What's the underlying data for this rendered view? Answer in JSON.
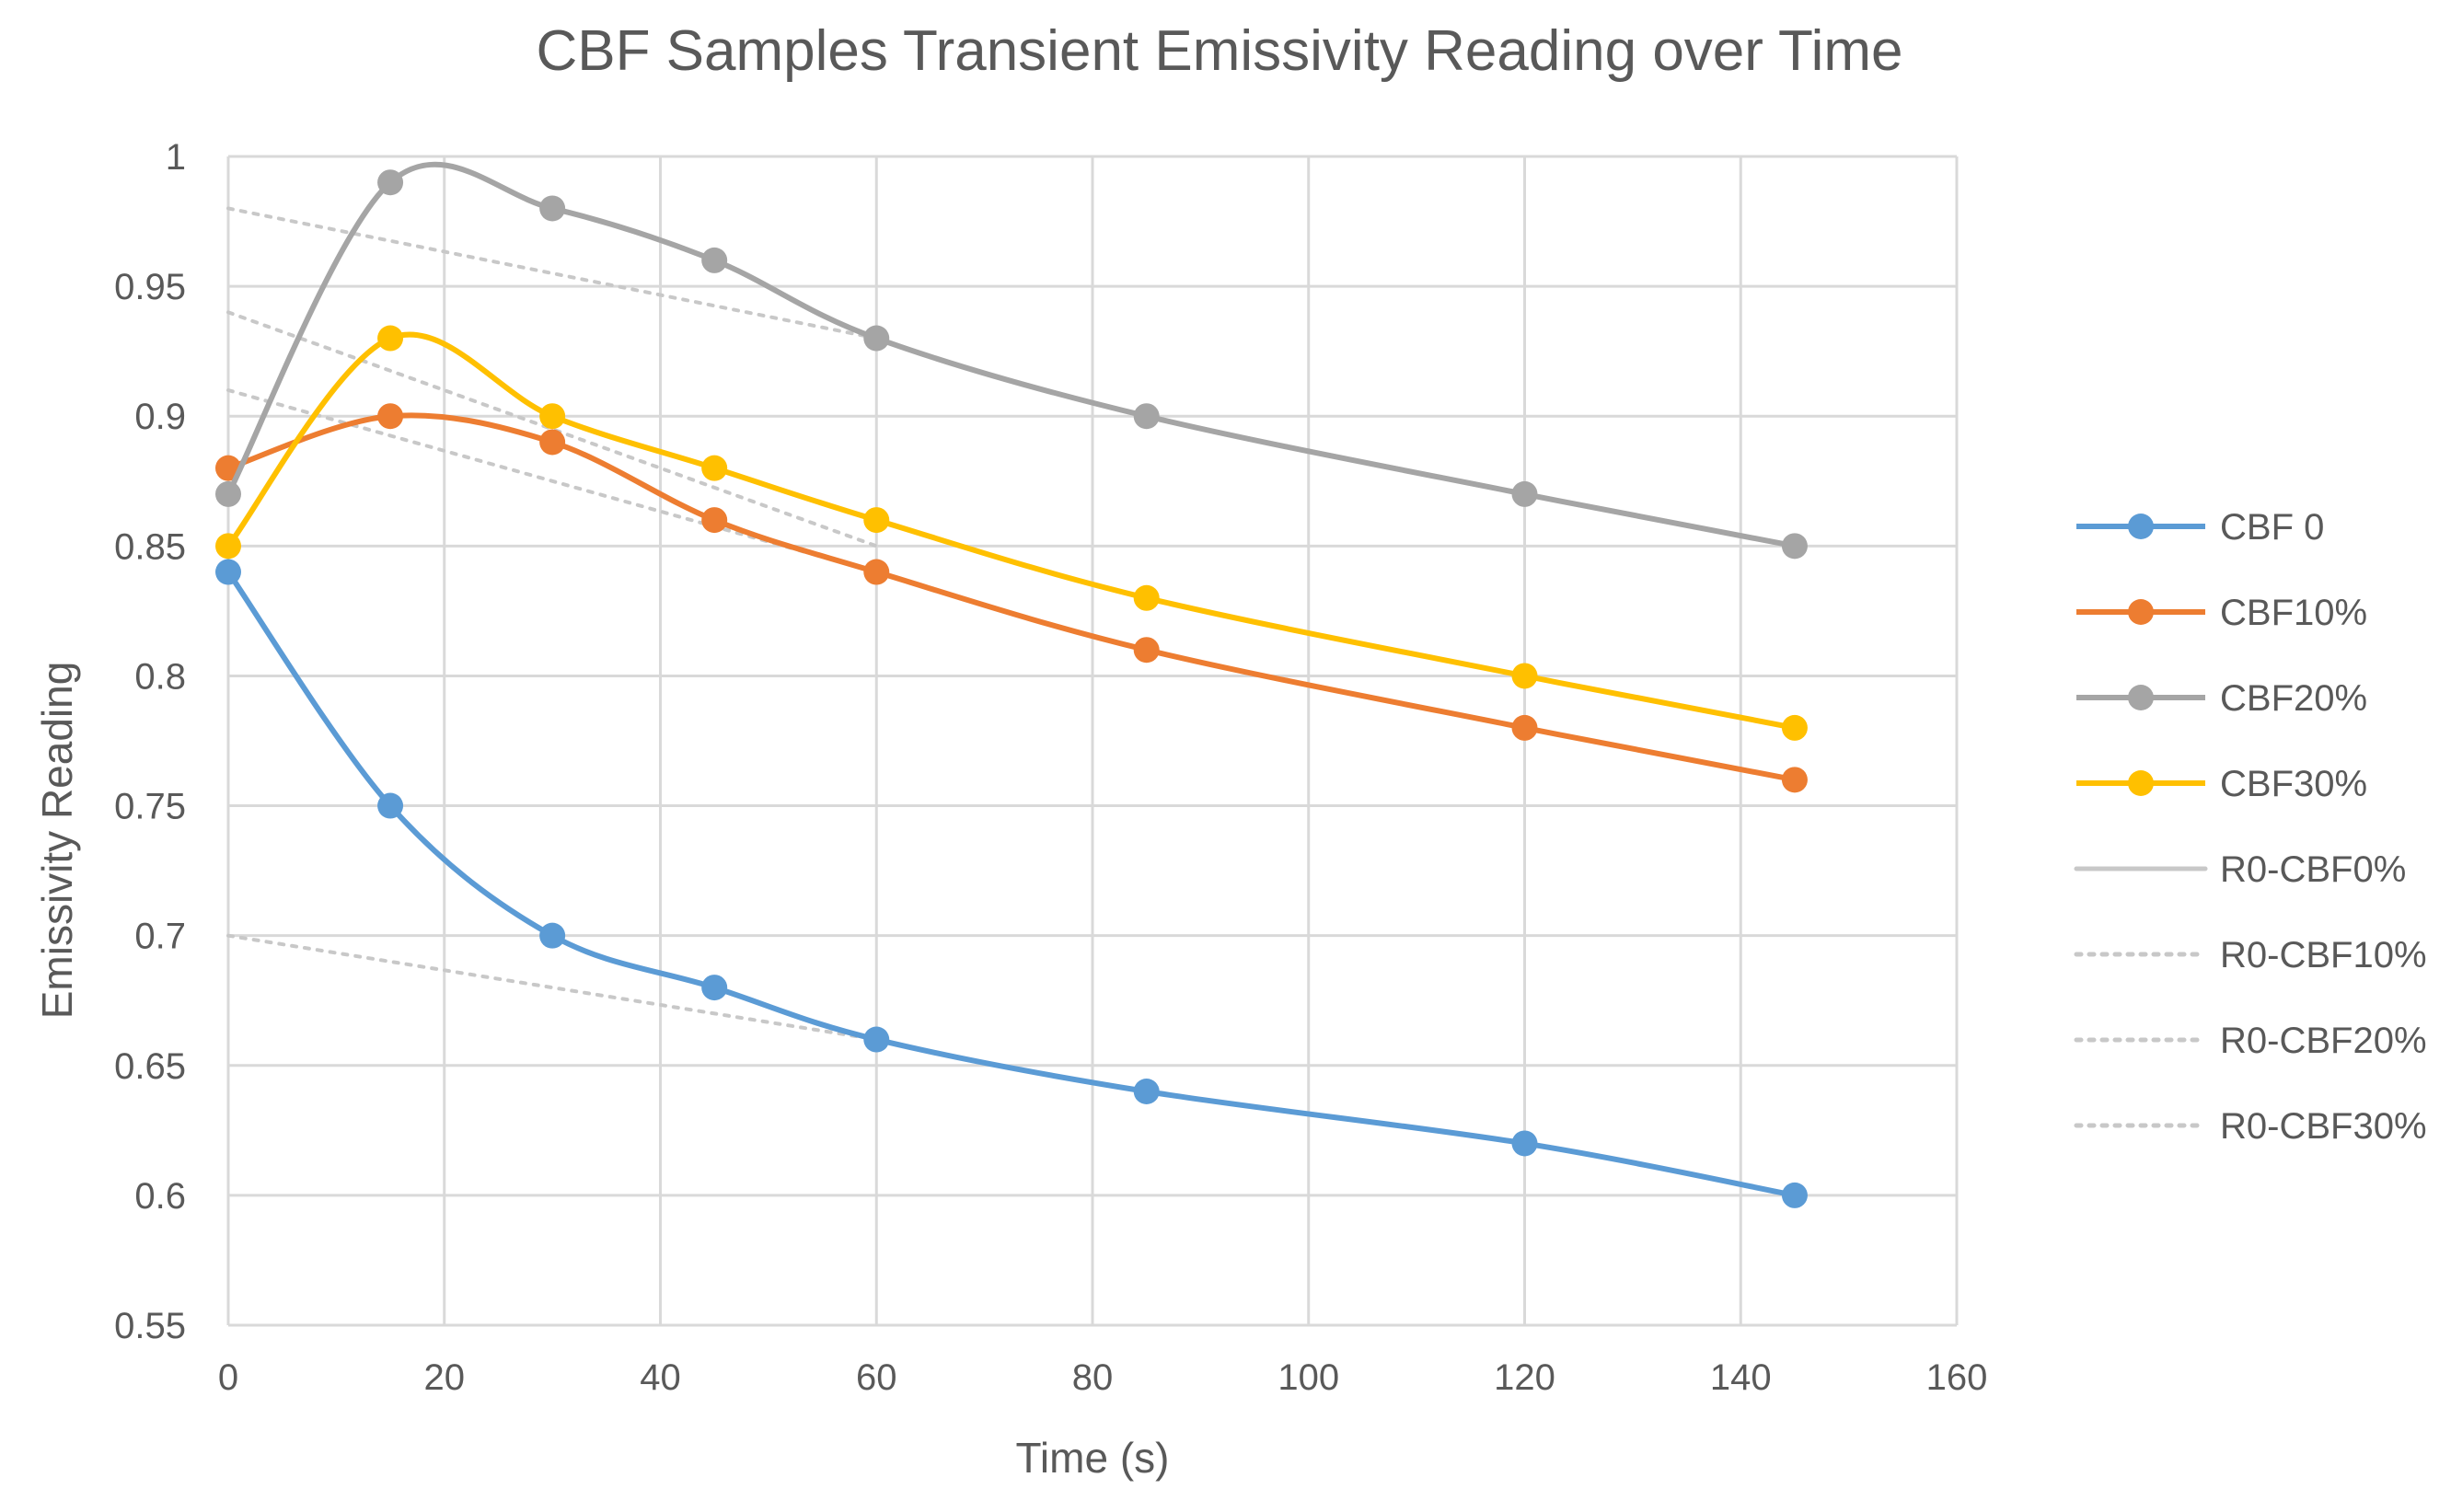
{
  "chart_data": {
    "type": "line",
    "title": "CBF Samples Transient Emissivity Reading over Time",
    "xlabel": "Time (s)",
    "ylabel": "Emissivity Reading",
    "xlim": [
      0,
      160
    ],
    "ylim": [
      0.55,
      1
    ],
    "x_ticks": [
      0,
      20,
      40,
      60,
      80,
      100,
      120,
      140,
      160
    ],
    "y_ticks": [
      0.55,
      0.6,
      0.65,
      0.7,
      0.75,
      0.8,
      0.85,
      0.9,
      0.95,
      1
    ],
    "x_tick_labels": [
      "0",
      "20",
      "40",
      "60",
      "80",
      "100",
      "120",
      "140",
      "160"
    ],
    "y_tick_labels": [
      "0.55",
      "0.6",
      "0.65",
      "0.7",
      "0.75",
      "0.8",
      "0.85",
      "0.9",
      "0.95",
      "1"
    ],
    "grid": true,
    "legend_position": "right",
    "x": [
      0,
      15,
      30,
      45,
      60,
      85,
      120,
      145
    ],
    "series": [
      {
        "name": "CBF 0",
        "color": "#5B9BD5",
        "style": "solid-markers",
        "values": [
          0.84,
          0.75,
          0.7,
          0.68,
          0.66,
          0.64,
          0.62,
          0.6
        ]
      },
      {
        "name": "CBF10%",
        "color": "#ED7D31",
        "style": "solid-markers",
        "values": [
          0.88,
          0.9,
          0.89,
          0.86,
          0.84,
          0.81,
          0.78,
          0.76
        ]
      },
      {
        "name": "CBF20%",
        "color": "#A5A5A5",
        "style": "solid-markers",
        "values": [
          0.87,
          0.99,
          0.98,
          0.96,
          0.93,
          0.9,
          0.87,
          0.85
        ]
      },
      {
        "name": "CBF30%",
        "color": "#FFC000",
        "style": "solid-markers",
        "values": [
          0.85,
          0.93,
          0.9,
          0.88,
          0.86,
          0.83,
          0.8,
          0.78
        ]
      }
    ],
    "trendlines": [
      {
        "name": "R0-CBF0%",
        "color": "#C8C8C8",
        "style": "solid",
        "x": [],
        "values": []
      },
      {
        "name": "R0-CBF10%",
        "color": "#C8C8C8",
        "style": "dotted",
        "x": [
          0,
          60
        ],
        "values": [
          0.91,
          0.84
        ]
      },
      {
        "name": "R0-CBF20%",
        "color": "#C8C8C8",
        "style": "dotted",
        "x": [
          0,
          60
        ],
        "values": [
          0.98,
          0.93
        ]
      },
      {
        "name": "R0-CBF30%",
        "color": "#C8C8C8",
        "style": "dotted",
        "x": [
          0,
          60
        ],
        "values": [
          0.94,
          0.85
        ]
      },
      {
        "name": "R0-CBF0% (lower)",
        "color": "#C8C8C8",
        "style": "dotted",
        "x": [
          0,
          60
        ],
        "values": [
          0.7,
          0.66
        ],
        "legend": false
      }
    ]
  }
}
